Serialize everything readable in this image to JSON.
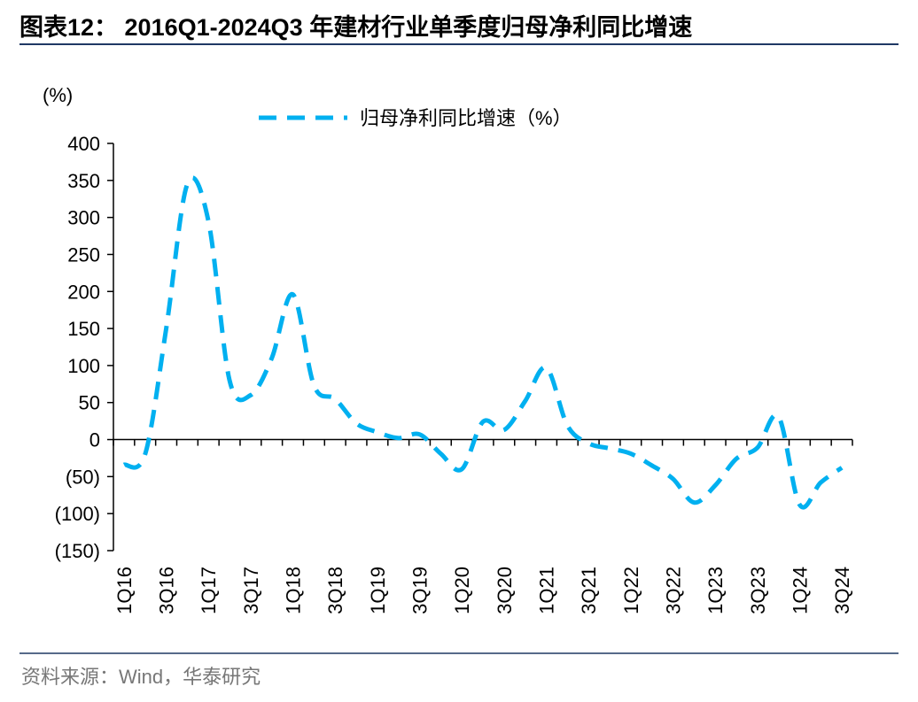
{
  "chart_data": {
    "type": "line",
    "title": "图表12： 2016Q1-2024Q3 年建材行业单季度归母净利同比增速",
    "y_unit": "(%)",
    "source": "资料来源：Wind，华泰研究",
    "categories": [
      "1Q16",
      null,
      "3Q16",
      null,
      "1Q17",
      null,
      "3Q17",
      null,
      "1Q18",
      null,
      "3Q18",
      null,
      "1Q19",
      null,
      "3Q19",
      null,
      "1Q20",
      null,
      "3Q20",
      null,
      "1Q21",
      null,
      "3Q21",
      null,
      "1Q22",
      null,
      "3Q22",
      null,
      "1Q23",
      null,
      "3Q23",
      null,
      "1Q24",
      null,
      "3Q24"
    ],
    "series": [
      {
        "name": "归母净利同比增速（%）",
        "color": "#00b0f0",
        "values": [
          -34,
          -20,
          150,
          345,
          295,
          80,
          60,
          110,
          196,
          73,
          55,
          22,
          10,
          2,
          7,
          -19,
          -40,
          24,
          13,
          52,
          97,
          19,
          -5,
          -12,
          -19,
          -35,
          -53,
          -85,
          -62,
          -26,
          -11,
          31,
          -88,
          -58,
          -38
        ]
      }
    ],
    "ylim": [
      -150,
      400
    ],
    "yticks": [
      {
        "value": -150,
        "label": "(150)"
      },
      {
        "value": -100,
        "label": "(100)"
      },
      {
        "value": -50,
        "label": "(50)"
      },
      0,
      50,
      100,
      150,
      200,
      250,
      300,
      350,
      400
    ],
    "grid": false,
    "legend": "top",
    "smooth": true,
    "dashed": true
  }
}
